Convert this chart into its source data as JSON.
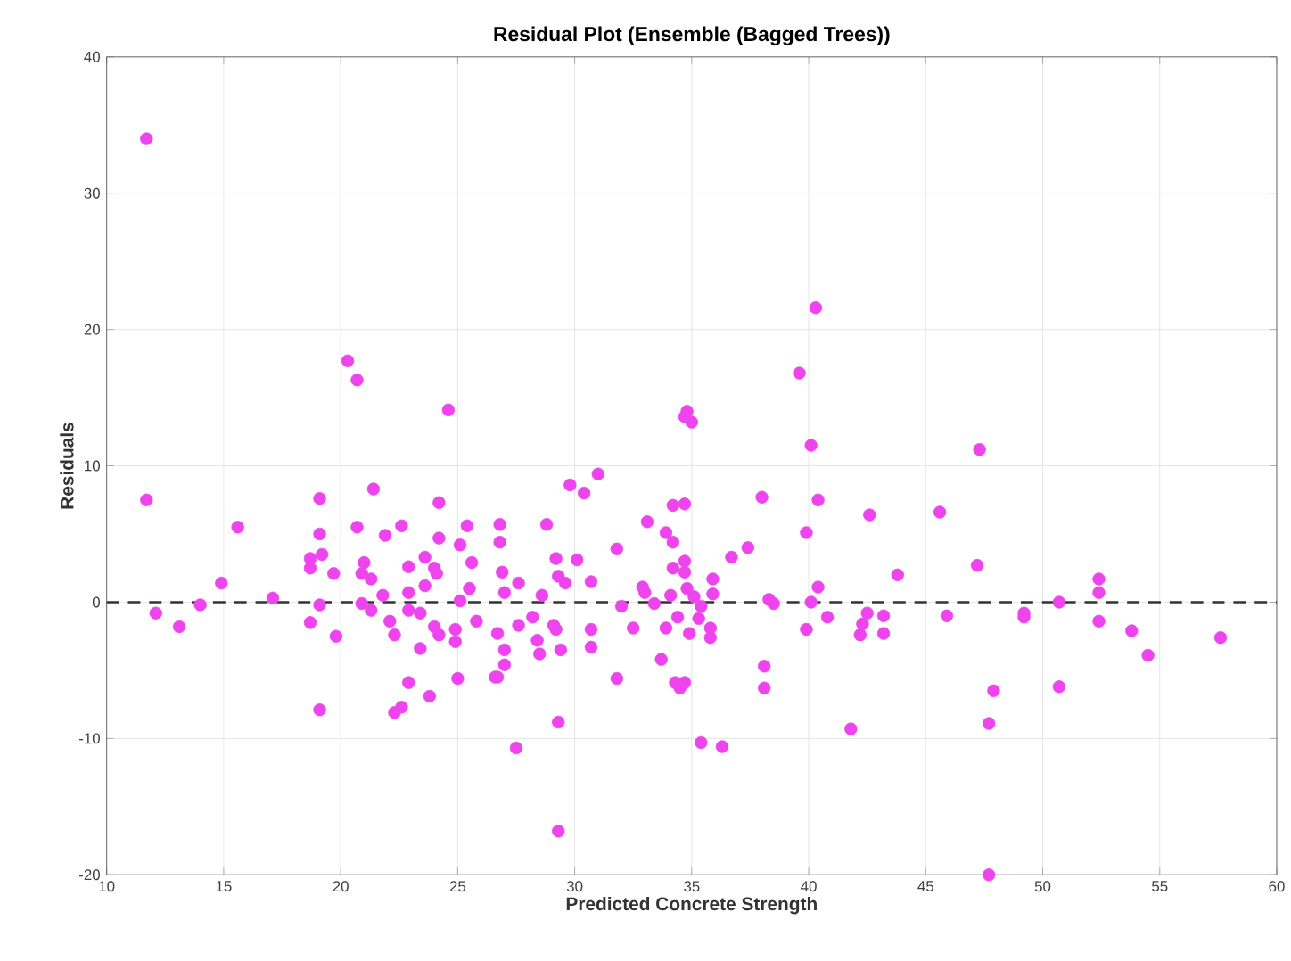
{
  "chart_data": {
    "type": "scatter",
    "title": "Residual Plot (Ensemble (Bagged Trees))",
    "xlabel": "Predicted Concrete Strength",
    "ylabel": "Residuals",
    "xlim": [
      10,
      60
    ],
    "xticks": [
      10,
      15,
      20,
      25,
      30,
      35,
      40,
      45,
      50,
      55,
      60
    ],
    "ylim": [
      -20,
      40
    ],
    "yticks": [
      -20,
      -10,
      0,
      10,
      20,
      30,
      40
    ],
    "grid": true,
    "marker": "circle",
    "ref_lines": [
      {
        "axis": "y",
        "value": 0,
        "color": "#333333",
        "line_style": "dashed"
      }
    ],
    "series": [
      {
        "color": "#ee44ee",
        "x": [
          11.7,
          11.7,
          19.1,
          21.4,
          24.2,
          15.6,
          19.1,
          20.7,
          22.6,
          21.9,
          24.2,
          25.4,
          25.1,
          18.7,
          19.2,
          18.7,
          19.7,
          21.0,
          20.9,
          21.3,
          22.9,
          23.6,
          24.0,
          24.1,
          25.6,
          14.9,
          17.1,
          14.0,
          12.1,
          13.1,
          19.1,
          18.7,
          19.8,
          20.9,
          21.3,
          21.8,
          22.1,
          22.3,
          22.9,
          22.9,
          23.4,
          23.6,
          24.0,
          24.2,
          23.4,
          25.1,
          25.5,
          25.8,
          24.9,
          24.9,
          22.9,
          25.0,
          23.8,
          22.6,
          22.3,
          19.1,
          26.6,
          26.9,
          27.6,
          27.0,
          28.6,
          29.3,
          29.6,
          30.7,
          26.7,
          27.6,
          28.2,
          29.1,
          29.2,
          27.0,
          28.4,
          28.5,
          29.4,
          27.0,
          26.7,
          30.7,
          30.7,
          31.8,
          32.5,
          32.0,
          32.9,
          33.0,
          33.4,
          34.1,
          34.4,
          33.9,
          34.9,
          33.7,
          34.3,
          34.5,
          34.7,
          34.7,
          34.8,
          35.1,
          35.4,
          35.3,
          35.9,
          35.9,
          35.8,
          35.8,
          35.4,
          36.3,
          27.5,
          29.3,
          29.3,
          38.3,
          38.5,
          40.1,
          39.9,
          40.8,
          40.4,
          38.1,
          38.1,
          41.8,
          40.3,
          39.6,
          34.8,
          35.0,
          34.7,
          40.1,
          29.8,
          30.4,
          31.0,
          38.0,
          40.4,
          34.2,
          34.7,
          26.8,
          26.8,
          28.8,
          33.1,
          31.8,
          30.1,
          29.2,
          33.9,
          34.2,
          36.7,
          37.4,
          39.9,
          34.7,
          34.2,
          47.3,
          42.6,
          45.6,
          47.2,
          43.8,
          52.4,
          52.4,
          50.7,
          42.5,
          42.3,
          42.2,
          43.2,
          43.2,
          45.9,
          49.2,
          49.2,
          52.4,
          53.8,
          54.5,
          57.6,
          47.9,
          47.7,
          50.7,
          47.7,
          20.3,
          20.7,
          24.6
        ],
        "values": [
          34.0,
          7.5,
          7.6,
          8.3,
          7.3,
          5.5,
          5.0,
          5.5,
          5.6,
          4.9,
          4.7,
          5.6,
          4.2,
          3.2,
          3.5,
          2.5,
          2.1,
          2.9,
          2.1,
          1.7,
          2.6,
          3.3,
          2.5,
          2.1,
          2.9,
          1.4,
          0.3,
          -0.2,
          -0.8,
          -1.8,
          -0.2,
          -1.5,
          -2.5,
          -0.1,
          -0.6,
          0.5,
          -1.4,
          -2.4,
          0.7,
          -0.6,
          -0.8,
          1.2,
          -1.8,
          -2.4,
          -3.4,
          0.1,
          1.0,
          -1.4,
          -2.0,
          -2.9,
          -5.9,
          -5.6,
          -6.9,
          -7.7,
          -8.1,
          -7.9,
          -5.5,
          2.2,
          1.4,
          0.7,
          0.5,
          1.9,
          1.4,
          1.5,
          -2.3,
          -1.7,
          -1.1,
          -1.7,
          -2.0,
          -3.5,
          -2.8,
          -3.8,
          -3.5,
          -4.6,
          -5.5,
          -2.0,
          -3.3,
          -5.6,
          -1.9,
          -0.3,
          1.1,
          0.7,
          -0.1,
          0.5,
          -1.1,
          -1.9,
          -2.3,
          -4.2,
          -5.9,
          -6.3,
          -5.9,
          2.2,
          1.0,
          0.4,
          -0.3,
          -1.2,
          1.7,
          0.6,
          -1.9,
          -2.6,
          -10.3,
          -10.6,
          -10.7,
          -8.8,
          -16.8,
          0.2,
          -0.1,
          0.0,
          -2.0,
          -1.1,
          1.1,
          -4.7,
          -6.3,
          -9.3,
          21.6,
          16.8,
          14.0,
          13.2,
          13.6,
          11.5,
          8.6,
          8.0,
          9.4,
          7.7,
          7.5,
          7.1,
          7.2,
          5.7,
          4.4,
          5.7,
          5.9,
          3.9,
          3.1,
          3.2,
          5.1,
          4.4,
          3.3,
          4.0,
          5.1,
          3.0,
          2.5,
          11.2,
          6.4,
          6.6,
          2.7,
          2.0,
          1.7,
          0.7,
          0.0,
          -0.8,
          -1.6,
          -2.4,
          -1.0,
          -2.3,
          -1.0,
          -0.8,
          -1.1,
          -1.4,
          -2.1,
          -3.9,
          -2.6,
          -6.5,
          -8.9,
          -6.2,
          -20.0,
          17.7,
          16.3,
          14.1
        ]
      }
    ]
  }
}
